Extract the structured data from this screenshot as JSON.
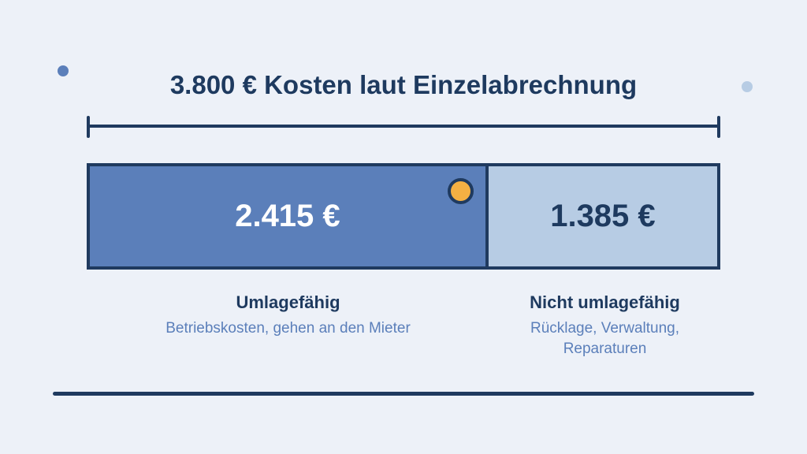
{
  "title": "3.800 € Kosten laut Einzelabrechnung",
  "total_eur": 3800,
  "segments": [
    {
      "value_label": "2.415 €",
      "value_eur": 2415,
      "heading": "Umlagefähig",
      "description": "Betriebskosten, gehen an den Mieter",
      "color": "#5b7fba"
    },
    {
      "value_label": "1.385 €",
      "value_eur": 1385,
      "heading": "Nicht umlagefähig",
      "description": "Rücklage, Verwaltung, Reparaturen",
      "color": "#b7cce4"
    }
  ],
  "colors": {
    "background": "#edf1f8",
    "dark": "#1f3a5f",
    "accent": "#f4b043",
    "muted_text": "#5b7fba"
  }
}
